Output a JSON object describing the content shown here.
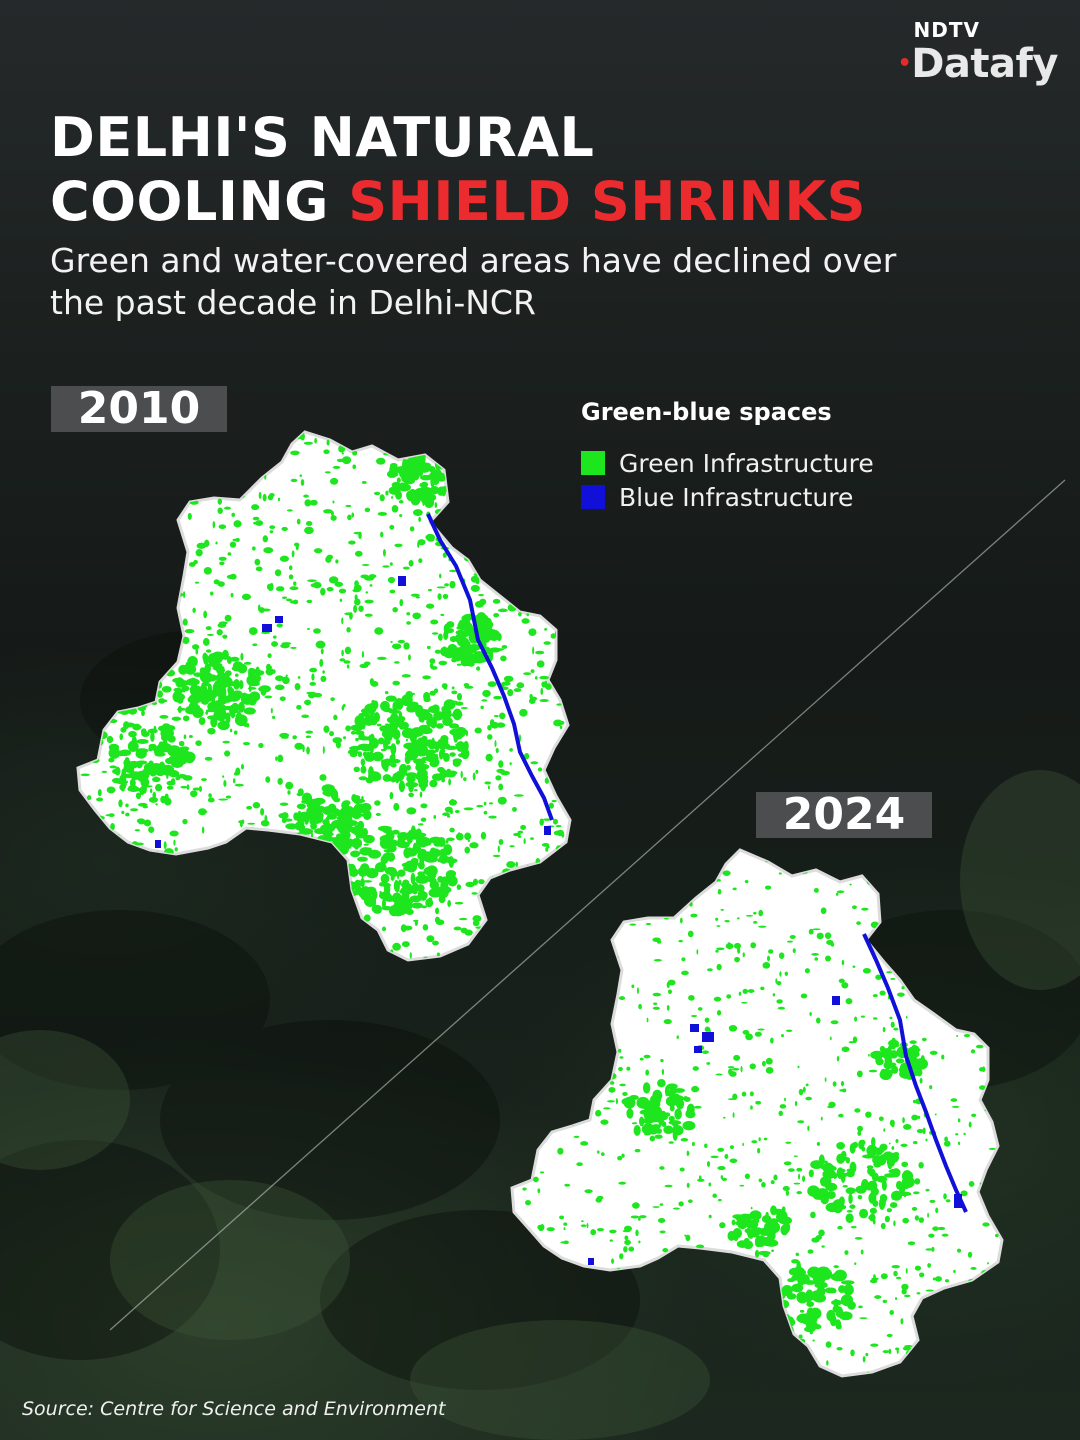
{
  "brand": {
    "top": "NDTV",
    "main": "Datafy"
  },
  "title": {
    "line1": "DELHI'S NATURAL",
    "line2_plain": "COOLING ",
    "line2_highlight": "SHIELD SHRINKS"
  },
  "subtitle": "Green and water-covered areas have declined over the past decade in Delhi-NCR",
  "legend": {
    "title": "Green-blue spaces",
    "items": [
      {
        "label": "Green Infrastructure",
        "color": "#1ee61e"
      },
      {
        "label": "Blue Infrastructure",
        "color": "#1010d8"
      }
    ]
  },
  "maps": [
    {
      "year": "2010",
      "green_cover": "high"
    },
    {
      "year": "2024",
      "green_cover": "lower"
    }
  ],
  "colors": {
    "accent_red": "#ec2b2f",
    "green": "#1ee61e",
    "blue": "#1010d8",
    "land": "#ffffff"
  },
  "source": "Source: Centre for Science and Environment"
}
